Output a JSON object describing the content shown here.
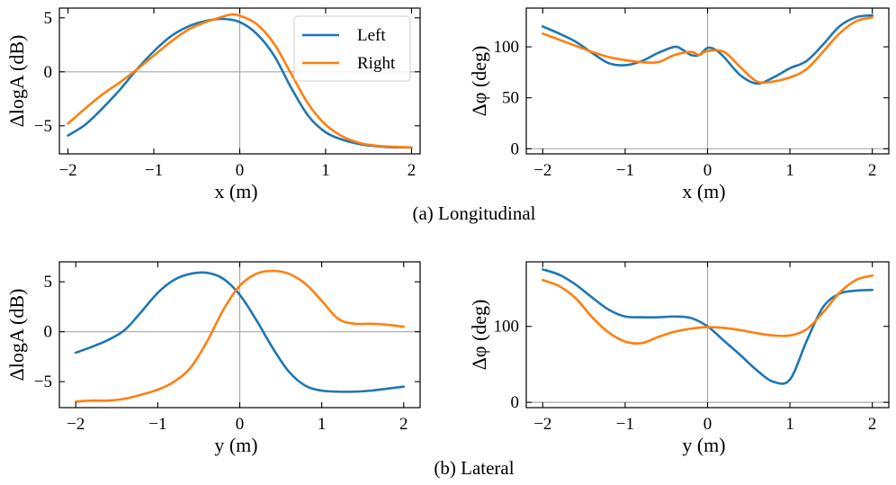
{
  "figure": {
    "caption_a": "(a) Longitudinal",
    "caption_b": "(b) Lateral"
  },
  "chart_data": [
    {
      "id": "long_logA",
      "type": "line",
      "xlabel": "x (m)",
      "ylabel": "ΔlogA (dB)",
      "xlim": [
        -2.1,
        2.1
      ],
      "ylim": [
        -7.6,
        5.9
      ],
      "xticks": [
        -2,
        -1,
        0,
        1,
        2
      ],
      "yticks": [
        -5,
        0,
        5
      ],
      "xtick_labels": [
        "−2",
        "−1",
        "0",
        "1",
        "2"
      ],
      "ytick_labels": [
        "−5",
        "0",
        "5"
      ],
      "reflines": {
        "x": 0,
        "y": 0
      },
      "legend": {
        "position": "top-right",
        "entries": [
          "Left",
          "Right"
        ]
      },
      "series": [
        {
          "name": "Left",
          "color": "#1f77b4",
          "x": [
            -2,
            -1.8,
            -1.6,
            -1.4,
            -1.2,
            -1,
            -0.8,
            -0.6,
            -0.4,
            -0.2,
            0,
            0.2,
            0.4,
            0.6,
            0.8,
            1,
            1.2,
            1.4,
            1.6,
            1.8,
            2
          ],
          "y": [
            -5.9,
            -4.9,
            -3.4,
            -1.7,
            0.2,
            1.9,
            3.3,
            4.2,
            4.7,
            4.9,
            4.6,
            3.5,
            1.5,
            -1.5,
            -4.1,
            -5.6,
            -6.3,
            -6.7,
            -6.9,
            -7,
            -7
          ]
        },
        {
          "name": "Right",
          "color": "#ff7f0e",
          "x": [
            -2,
            -1.8,
            -1.6,
            -1.4,
            -1.2,
            -1,
            -0.8,
            -0.6,
            -0.4,
            -0.2,
            -0.1,
            0,
            0.2,
            0.4,
            0.6,
            0.8,
            1,
            1.2,
            1.4,
            1.6,
            1.8,
            2
          ],
          "y": [
            -4.8,
            -3.4,
            -2.1,
            -1.0,
            0.2,
            1.5,
            2.8,
            3.9,
            4.6,
            5.1,
            5.3,
            5.2,
            4.4,
            2.6,
            -0.2,
            -3.0,
            -4.9,
            -6.0,
            -6.6,
            -6.85,
            -6.95,
            -7
          ]
        }
      ]
    },
    {
      "id": "long_phase",
      "type": "line",
      "xlabel": "x (m)",
      "ylabel": "Δφ (deg)",
      "xlim": [
        -2.2,
        2.2
      ],
      "ylim": [
        -5,
        138
      ],
      "xticks": [
        -2,
        -1,
        0,
        1,
        2
      ],
      "yticks": [
        0,
        50,
        100
      ],
      "xtick_labels": [
        "−2",
        "−1",
        "0",
        "1",
        "2"
      ],
      "ytick_labels": [
        "0",
        "50",
        "100"
      ],
      "reflines": {
        "x": 0,
        "y": 0
      },
      "series": [
        {
          "name": "Left",
          "color": "#1f77b4",
          "x": [
            -2,
            -1.8,
            -1.6,
            -1.4,
            -1.2,
            -1,
            -0.8,
            -0.6,
            -0.4,
            -0.3,
            -0.2,
            -0.1,
            0,
            0.1,
            0.2,
            0.4,
            0.6,
            0.8,
            1,
            1.2,
            1.4,
            1.6,
            1.8,
            2
          ],
          "y": [
            120,
            113,
            105,
            94,
            84,
            82,
            86,
            94,
            100,
            97,
            92,
            92,
            99,
            97,
            90,
            72,
            64,
            70,
            79,
            86,
            102,
            120,
            129,
            131
          ]
        },
        {
          "name": "Right",
          "color": "#ff7f0e",
          "x": [
            -2,
            -1.8,
            -1.6,
            -1.4,
            -1.2,
            -1,
            -0.8,
            -0.6,
            -0.4,
            -0.2,
            -0.1,
            0,
            0.2,
            0.4,
            0.6,
            0.8,
            1,
            1.2,
            1.4,
            1.6,
            1.8,
            2
          ],
          "y": [
            113,
            107,
            101,
            95,
            90,
            87,
            85,
            85,
            92,
            95,
            92,
            96,
            95,
            80,
            66,
            66,
            70,
            78,
            95,
            113,
            125,
            129
          ]
        }
      ]
    },
    {
      "id": "lat_logA",
      "type": "line",
      "xlabel": "y (m)",
      "ylabel": "ΔlogA (dB)",
      "xlim": [
        -2.2,
        2.2
      ],
      "ylim": [
        -7.6,
        7.0
      ],
      "xticks": [
        -2,
        -1,
        0,
        1,
        2
      ],
      "yticks": [
        -5,
        0,
        5
      ],
      "xtick_labels": [
        "−2",
        "−1",
        "0",
        "1",
        "2"
      ],
      "ytick_labels": [
        "−5",
        "0",
        "5"
      ],
      "reflines": {
        "x": 0,
        "y": 0
      },
      "series": [
        {
          "name": "Left",
          "color": "#1f77b4",
          "x": [
            -2,
            -1.8,
            -1.6,
            -1.4,
            -1.2,
            -1,
            -0.8,
            -0.6,
            -0.4,
            -0.2,
            0,
            0.2,
            0.4,
            0.6,
            0.8,
            1,
            1.2,
            1.4,
            1.6,
            1.8,
            2
          ],
          "y": [
            -2.1,
            -1.5,
            -0.8,
            0.2,
            2.0,
            3.9,
            5.2,
            5.8,
            5.9,
            5.3,
            3.7,
            1.2,
            -1.6,
            -4.0,
            -5.4,
            -5.9,
            -6.0,
            -6.0,
            -5.9,
            -5.7,
            -5.5
          ]
        },
        {
          "name": "Right",
          "color": "#ff7f0e",
          "x": [
            -2,
            -1.8,
            -1.6,
            -1.4,
            -1.2,
            -1,
            -0.8,
            -0.6,
            -0.4,
            -0.2,
            0,
            0.2,
            0.4,
            0.6,
            0.8,
            1,
            1.2,
            1.4,
            1.6,
            1.8,
            2
          ],
          "y": [
            -7.0,
            -6.9,
            -6.9,
            -6.7,
            -6.3,
            -5.8,
            -5.0,
            -3.6,
            -1.0,
            2.2,
            4.6,
            5.8,
            6.1,
            5.8,
            4.8,
            3.1,
            1.3,
            0.8,
            0.8,
            0.7,
            0.5
          ]
        }
      ]
    },
    {
      "id": "lat_phase",
      "type": "line",
      "xlabel": "y (m)",
      "ylabel": "Δφ (deg)",
      "xlim": [
        -2.2,
        2.2
      ],
      "ylim": [
        -7,
        185
      ],
      "xticks": [
        -2,
        -1,
        0,
        1,
        2
      ],
      "yticks": [
        0,
        100
      ],
      "xtick_labels": [
        "−2",
        "−1",
        "0",
        "1",
        "2"
      ],
      "ytick_labels": [
        "0",
        "100"
      ],
      "reflines": {
        "x": 0,
        "y": 0
      },
      "series": [
        {
          "name": "Left",
          "color": "#1f77b4",
          "x": [
            -2,
            -1.8,
            -1.6,
            -1.4,
            -1.2,
            -1,
            -0.8,
            -0.6,
            -0.4,
            -0.2,
            0,
            0.2,
            0.4,
            0.6,
            0.8,
            1,
            1.2,
            1.4,
            1.6,
            1.8,
            2
          ],
          "y": [
            175,
            168,
            155,
            138,
            122,
            113,
            112,
            112,
            113,
            111,
            100,
            81,
            62,
            42,
            27,
            30,
            80,
            125,
            143,
            147,
            148
          ]
        },
        {
          "name": "Right",
          "color": "#ff7f0e",
          "x": [
            -2,
            -1.8,
            -1.6,
            -1.4,
            -1.2,
            -1,
            -0.8,
            -0.6,
            -0.4,
            -0.2,
            0,
            0.2,
            0.4,
            0.6,
            0.8,
            1,
            1.2,
            1.4,
            1.6,
            1.8,
            2
          ],
          "y": [
            161,
            153,
            137,
            112,
            92,
            80,
            78,
            86,
            93,
            97,
            99,
            98,
            95,
            91,
            88,
            88,
            96,
            118,
            144,
            161,
            167
          ]
        }
      ]
    }
  ]
}
